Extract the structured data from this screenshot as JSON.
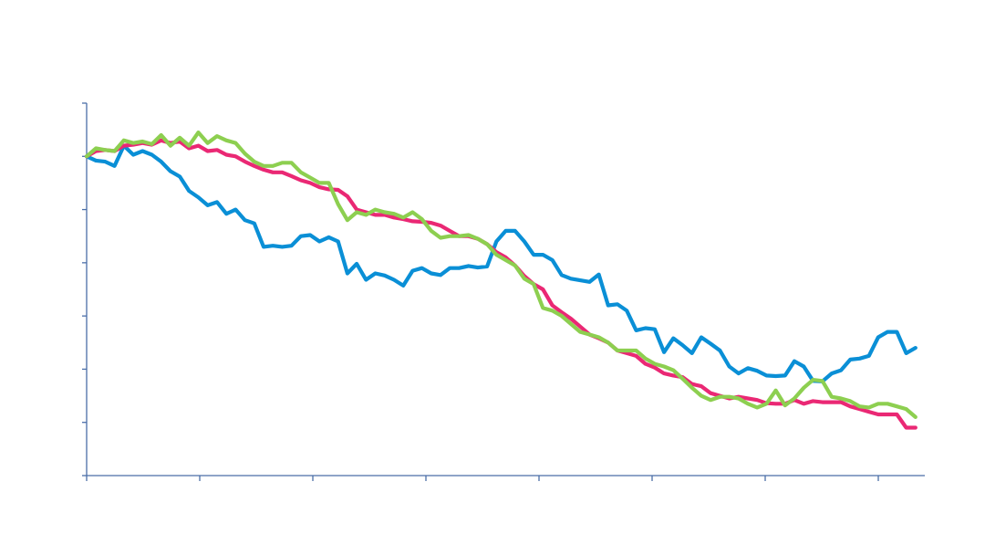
{
  "chart_data": {
    "type": "line",
    "title": "",
    "xlabel": "",
    "ylabel": "",
    "x": [
      0,
      1,
      2,
      3,
      4,
      5,
      6,
      7,
      8,
      9,
      10,
      11,
      12,
      13,
      14,
      15,
      16,
      17,
      18,
      19,
      20,
      21,
      22,
      23,
      24,
      25,
      26,
      27,
      28,
      29,
      30,
      31,
      32,
      33,
      34,
      35,
      36,
      37,
      38,
      39,
      40,
      41,
      42,
      43,
      44,
      45,
      46,
      47,
      48,
      49,
      50,
      51,
      52,
      53,
      54,
      55,
      56,
      57,
      58,
      59,
      60,
      61,
      62,
      63,
      64,
      65,
      66,
      67,
      68,
      69,
      70,
      71,
      72,
      73,
      74,
      75,
      76,
      77,
      78,
      79,
      80,
      81,
      82,
      83,
      84,
      85,
      86,
      87,
      88,
      89
    ],
    "xlim": [
      0,
      90
    ],
    "ylim": [
      0,
      7
    ],
    "x_ticks": 8,
    "y_ticks": 8,
    "grid": false,
    "legend": "none",
    "series": [
      {
        "color": "#0a8fd6",
        "values": [
          6.0,
          5.92,
          5.9,
          5.82,
          6.2,
          6.03,
          6.1,
          6.03,
          5.9,
          5.72,
          5.62,
          5.35,
          5.23,
          5.08,
          5.14,
          4.92,
          5.0,
          4.8,
          4.74,
          4.3,
          4.32,
          4.3,
          4.32,
          4.5,
          4.52,
          4.4,
          4.48,
          4.4,
          3.8,
          3.98,
          3.68,
          3.8,
          3.76,
          3.68,
          3.57,
          3.85,
          3.9,
          3.8,
          3.77,
          3.9,
          3.9,
          3.94,
          3.91,
          3.93,
          4.4,
          4.6,
          4.6,
          4.4,
          4.15,
          4.15,
          4.05,
          3.77,
          3.7,
          3.67,
          3.64,
          3.78,
          3.2,
          3.22,
          3.1,
          2.73,
          2.77,
          2.75,
          2.32,
          2.58,
          2.45,
          2.3,
          2.6,
          2.48,
          2.35,
          2.05,
          1.92,
          2.02,
          1.97,
          1.88,
          1.87,
          1.88,
          2.15,
          2.05,
          1.78,
          1.77,
          1.92,
          1.98,
          2.18,
          2.2,
          2.25,
          2.6,
          2.7,
          2.7,
          2.3,
          2.4
        ]
      },
      {
        "color": "#ea2874",
        "values": [
          6.0,
          6.1,
          6.12,
          6.1,
          6.2,
          6.22,
          6.25,
          6.22,
          6.3,
          6.25,
          6.28,
          6.15,
          6.2,
          6.1,
          6.12,
          6.03,
          6.0,
          5.9,
          5.82,
          5.75,
          5.7,
          5.7,
          5.63,
          5.55,
          5.5,
          5.42,
          5.38,
          5.37,
          5.25,
          5.0,
          4.95,
          4.9,
          4.9,
          4.85,
          4.82,
          4.78,
          4.77,
          4.75,
          4.7,
          4.6,
          4.5,
          4.5,
          4.45,
          4.35,
          4.2,
          4.1,
          3.95,
          3.75,
          3.6,
          3.5,
          3.2,
          3.07,
          2.95,
          2.8,
          2.65,
          2.58,
          2.5,
          2.35,
          2.3,
          2.25,
          2.1,
          2.03,
          1.92,
          1.88,
          1.85,
          1.72,
          1.68,
          1.55,
          1.5,
          1.45,
          1.48,
          1.45,
          1.42,
          1.36,
          1.35,
          1.35,
          1.42,
          1.35,
          1.4,
          1.38,
          1.38,
          1.38,
          1.3,
          1.25,
          1.2,
          1.15,
          1.15,
          1.15,
          0.9,
          0.9
        ]
      },
      {
        "color": "#8dcf50",
        "values": [
          6.0,
          6.15,
          6.12,
          6.1,
          6.3,
          6.25,
          6.28,
          6.23,
          6.4,
          6.2,
          6.35,
          6.2,
          6.45,
          6.25,
          6.38,
          6.3,
          6.25,
          6.05,
          5.9,
          5.82,
          5.82,
          5.88,
          5.88,
          5.7,
          5.6,
          5.5,
          5.5,
          5.1,
          4.8,
          4.95,
          4.9,
          5.0,
          4.95,
          4.92,
          4.85,
          4.95,
          4.82,
          4.6,
          4.47,
          4.5,
          4.5,
          4.52,
          4.45,
          4.35,
          4.15,
          4.05,
          3.95,
          3.7,
          3.6,
          3.15,
          3.1,
          3.0,
          2.85,
          2.7,
          2.65,
          2.6,
          2.5,
          2.35,
          2.35,
          2.35,
          2.2,
          2.1,
          2.05,
          1.98,
          1.82,
          1.65,
          1.5,
          1.42,
          1.48,
          1.48,
          1.45,
          1.35,
          1.28,
          1.35,
          1.6,
          1.32,
          1.45,
          1.65,
          1.8,
          1.78,
          1.48,
          1.45,
          1.4,
          1.3,
          1.28,
          1.35,
          1.35,
          1.3,
          1.25,
          1.1
        ]
      }
    ]
  }
}
